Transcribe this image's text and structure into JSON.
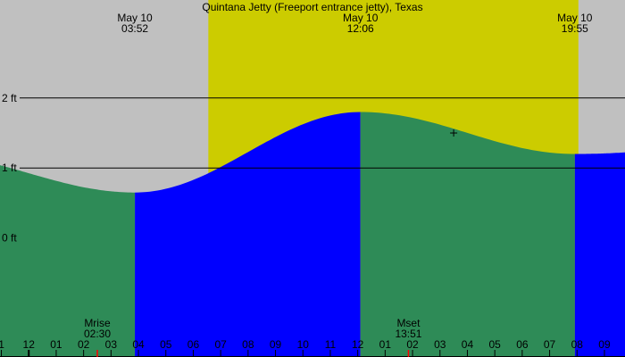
{
  "chart_data": {
    "type": "area",
    "title": "Quintana Jetty (Freeport entrance jetty), Texas",
    "y_unit": "ft",
    "ylim": [
      -1.7,
      3.4
    ],
    "y_ticks": [
      {
        "value": 2,
        "label": "2 ft"
      },
      {
        "value": 1,
        "label": "1 ft"
      },
      {
        "value": 0,
        "label": "0 ft"
      }
    ],
    "xlim_hours": [
      -1.05,
      21.75
    ],
    "x_tick_labels": [
      "1",
      "12",
      "01",
      "02",
      "03",
      "04",
      "05",
      "06",
      "07",
      "08",
      "09",
      "10",
      "11",
      "12",
      "01",
      "02",
      "03",
      "04",
      "05",
      "06",
      "07",
      "08",
      "09"
    ],
    "x_tick_hours": [
      -1,
      0,
      1,
      2,
      3,
      4,
      5,
      6,
      7,
      8,
      9,
      10,
      11,
      12,
      13,
      14,
      15,
      16,
      17,
      18,
      19,
      20,
      21
    ],
    "tides": [
      {
        "type": "low",
        "date": "May 10",
        "time": "03:52",
        "hour": 3.87,
        "height": 0.65
      },
      {
        "type": "high",
        "date": "May 10",
        "time": "12:06",
        "hour": 12.1,
        "height": 1.8
      },
      {
        "type": "low",
        "date": "May 10",
        "time": "19:55",
        "hour": 19.92,
        "height": 1.2
      }
    ],
    "start_height": 1.0,
    "end_height": 1.25,
    "daylight": {
      "start_hour": 6.55,
      "end_hour": 20.05
    },
    "moon": [
      {
        "label": "Mrise",
        "time": "02:30",
        "hour": 2.5
      },
      {
        "label": "Mset",
        "time": "13:51",
        "hour": 13.85
      }
    ],
    "current_marker": {
      "hour": 15.5,
      "height": 1.5
    },
    "colors": {
      "night": "#c0c0c0",
      "day": "#cccc00",
      "rising": "#0000ff",
      "falling": "#2e8b57",
      "moon_tick": "#ff0000",
      "axis": "#000000"
    }
  }
}
